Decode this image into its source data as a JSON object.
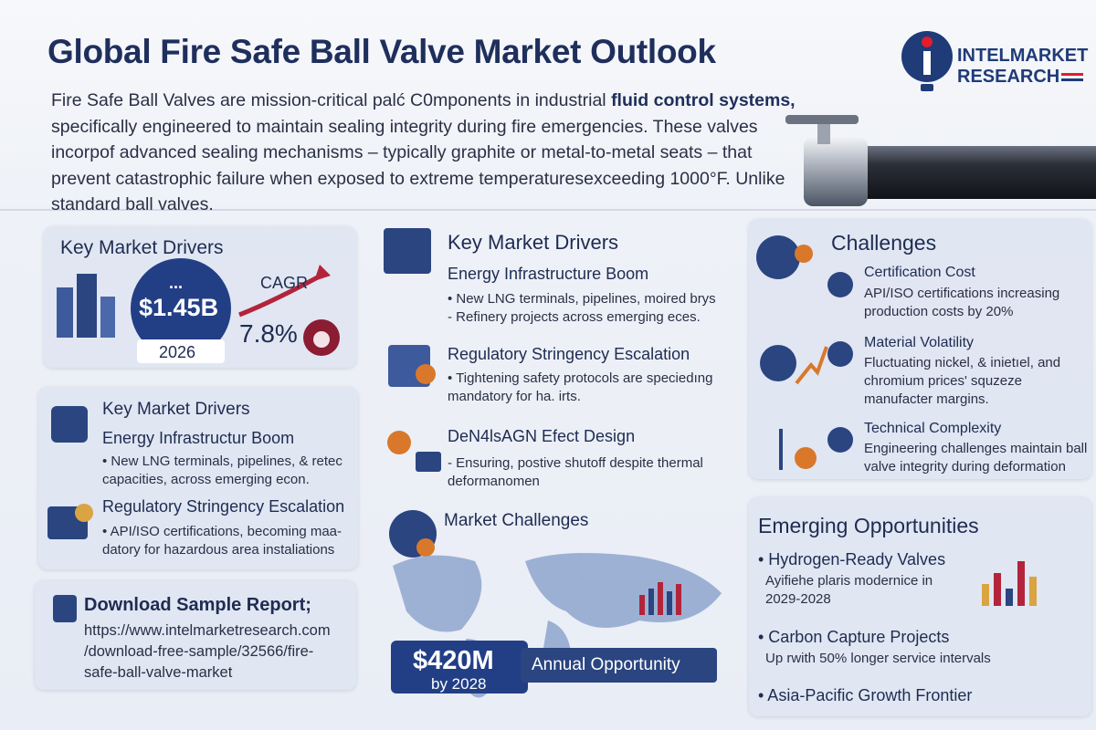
{
  "header": {
    "title": "Global Fire Safe Ball Valve Market Outlook",
    "intro_before": "Fire Safe Ball Valves are mission-critical palć C0mponents in industrial ",
    "intro_bold": "fluid control systems,",
    "intro_after": " specifically engineered to maintain sealing integrity during fire emergencies. These valves incorpof advanced sealing mechanisms – typically graphite or metal-to-metal seats – that prevent catastrophic failure when exposed to extreme temperaturesexceeding 1000°F. Unlike standard ball valves.",
    "logo_line1": "INTELMARKET",
    "logo_line2": "RESEARCH"
  },
  "summary_card": {
    "title": "Key Market Drivers",
    "value_dots": "...",
    "value": "$1.45B",
    "year": "2026",
    "cagr_label": "CAGR",
    "cagr": "7.8%"
  },
  "left_drivers": {
    "title": "Key Market Drivers",
    "items": [
      {
        "title": "Energy Infrastructur Boom",
        "text": "• New LNG terminals, pipelines, & retec capacities, across emerging econ."
      },
      {
        "title": "Regulatory Stringency Escalation",
        "text": "• API/ISO certifications, becoming maa- datory for hazardous area instaliations"
      }
    ]
  },
  "download": {
    "title": "Download Sample Report;",
    "url_lines": [
      "https://www.intelmarketresearch.com",
      "/download-free-sample/32566/fire-",
      "safe-ball-valve-market"
    ]
  },
  "middle_drivers": {
    "title": "Key Market Drivers",
    "items": [
      {
        "title": "Energy Infrastructure Boom",
        "bullets": [
          "• New LNG terminals, pipelines, moired brys",
          "- Refinery projects across emerging eces."
        ]
      },
      {
        "title": "Regulatory Stringency Escalation",
        "bullets": [
          "• Tightening safety protocols are speciedıng mandatory for ha. irts."
        ]
      },
      {
        "title": "DeN4lsAGN Efect Design",
        "bullets": [
          "- Ensuring, postive shutoff despite thermal deformanomen"
        ]
      }
    ]
  },
  "map_panel": {
    "title": "Market Challenges",
    "value": "$420M",
    "year": "by 2028",
    "label": "Annual Opportunity"
  },
  "challenges": {
    "title": "Challenges",
    "items": [
      {
        "title": "Certification Cost",
        "text": "API/ISO certifications increasing production costs by 20%"
      },
      {
        "title": "Material Volatility",
        "text": "Fluctuating nickel, & inietıel, and chromium prices' squzeze manufacter margins."
      },
      {
        "title": "Technical Complexity",
        "text": "Engineering challenges maintain ball valve integrity during deformation"
      }
    ]
  },
  "opportunities": {
    "title": "Emerging Opportunities",
    "items": [
      {
        "title": "• Hydrogen-Ready Valves",
        "text": "Ayifiehe plaris modernice in 2029-2028"
      },
      {
        "title": "• Carbon Capture Projects",
        "text": "Up rwith 50% longer service intervals"
      },
      {
        "title": "• Asia-Pacific Growth Frontier",
        "text": ""
      }
    ]
  }
}
